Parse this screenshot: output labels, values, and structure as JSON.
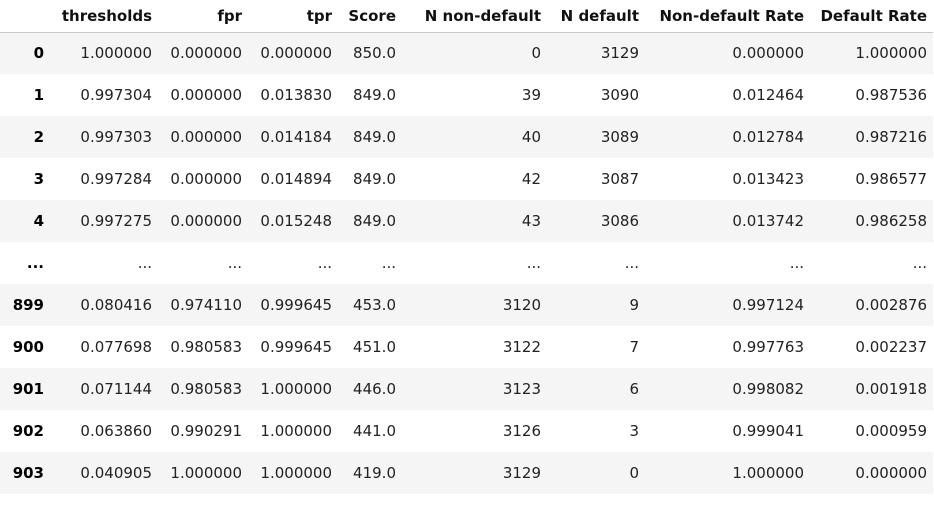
{
  "table": {
    "columns": [
      "",
      "thresholds",
      "fpr",
      "tpr",
      "Score",
      "N non-default",
      "N default",
      "Non-default Rate",
      "Default Rate"
    ],
    "rows": [
      {
        "index": "0",
        "cells": [
          "1.000000",
          "0.000000",
          "0.000000",
          "850.0",
          "0",
          "3129",
          "0.000000",
          "1.000000"
        ]
      },
      {
        "index": "1",
        "cells": [
          "0.997304",
          "0.000000",
          "0.013830",
          "849.0",
          "39",
          "3090",
          "0.012464",
          "0.987536"
        ]
      },
      {
        "index": "2",
        "cells": [
          "0.997303",
          "0.000000",
          "0.014184",
          "849.0",
          "40",
          "3089",
          "0.012784",
          "0.987216"
        ]
      },
      {
        "index": "3",
        "cells": [
          "0.997284",
          "0.000000",
          "0.014894",
          "849.0",
          "42",
          "3087",
          "0.013423",
          "0.986577"
        ]
      },
      {
        "index": "4",
        "cells": [
          "0.997275",
          "0.000000",
          "0.015248",
          "849.0",
          "43",
          "3086",
          "0.013742",
          "0.986258"
        ]
      },
      {
        "index": "...",
        "cells": [
          "...",
          "...",
          "...",
          "...",
          "...",
          "...",
          "...",
          "..."
        ]
      },
      {
        "index": "899",
        "cells": [
          "0.080416",
          "0.974110",
          "0.999645",
          "453.0",
          "3120",
          "9",
          "0.997124",
          "0.002876"
        ]
      },
      {
        "index": "900",
        "cells": [
          "0.077698",
          "0.980583",
          "0.999645",
          "451.0",
          "3122",
          "7",
          "0.997763",
          "0.002237"
        ]
      },
      {
        "index": "901",
        "cells": [
          "0.071144",
          "0.980583",
          "1.000000",
          "446.0",
          "3123",
          "6",
          "0.998082",
          "0.001918"
        ]
      },
      {
        "index": "902",
        "cells": [
          "0.063860",
          "0.990291",
          "1.000000",
          "441.0",
          "3126",
          "3",
          "0.999041",
          "0.000959"
        ]
      },
      {
        "index": "903",
        "cells": [
          "0.040905",
          "1.000000",
          "1.000000",
          "419.0",
          "3129",
          "0",
          "1.000000",
          "0.000000"
        ]
      }
    ]
  }
}
